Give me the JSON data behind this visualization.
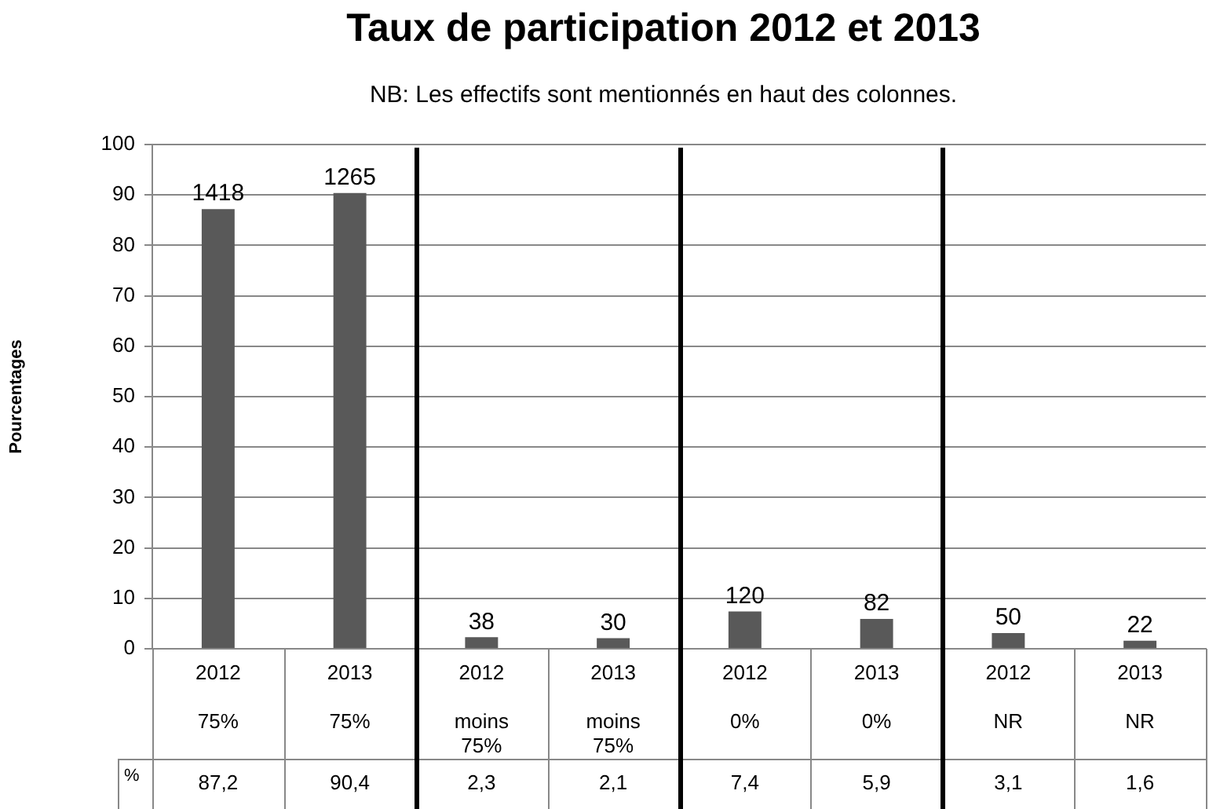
{
  "chart_data": {
    "type": "bar",
    "title": "Taux de participation 2012 et 2013",
    "subtitle": "NB: Les effectifs sont mentionnés en haut des colonnes.",
    "ylabel": "Pourcentages",
    "categories": [
      "2012\n75%",
      "2013\n75%",
      "2012\nmoins 75%",
      "2013\nmoins 75%",
      "2012\n0%",
      "2013\n0%",
      "2012\nNR",
      "2013\nNR"
    ],
    "values": [
      87.2,
      90.4,
      2.3,
      2.1,
      7.4,
      5.9,
      3.1,
      1.6
    ],
    "color": "#595959",
    "value_labels": [
      "87,2",
      "90,4",
      "2,3",
      "2,1",
      "7,4",
      "5,9",
      "3,1",
      "1,6"
    ],
    "ylim": [
      0,
      100
    ],
    "yticks": [
      0,
      10,
      20,
      30,
      40,
      50,
      60,
      70,
      80,
      90,
      100
    ],
    "grid": "y",
    "legend": false,
    "annotations": [
      "%",
      {
        "text": "1418",
        "x": "2012\n75%",
        "y": 87.2
      },
      {
        "text": "1265",
        "x": "2013\n75%",
        "y": 90.4
      },
      {
        "text": "38",
        "x": "2012\nmoins 75%",
        "y": 2.3
      },
      {
        "text": "30",
        "x": "2013\nmoins 75%",
        "y": 2.1
      },
      {
        "text": "120",
        "x": "2012\n0%",
        "y": 7.4
      },
      {
        "text": "82",
        "x": "2013\n0%",
        "y": 5.9
      },
      {
        "text": "50",
        "x": "2012\nNR",
        "y": 3.1
      },
      {
        "text": "22",
        "x": "2013\nNR",
        "y": 1.6
      }
    ]
  }
}
